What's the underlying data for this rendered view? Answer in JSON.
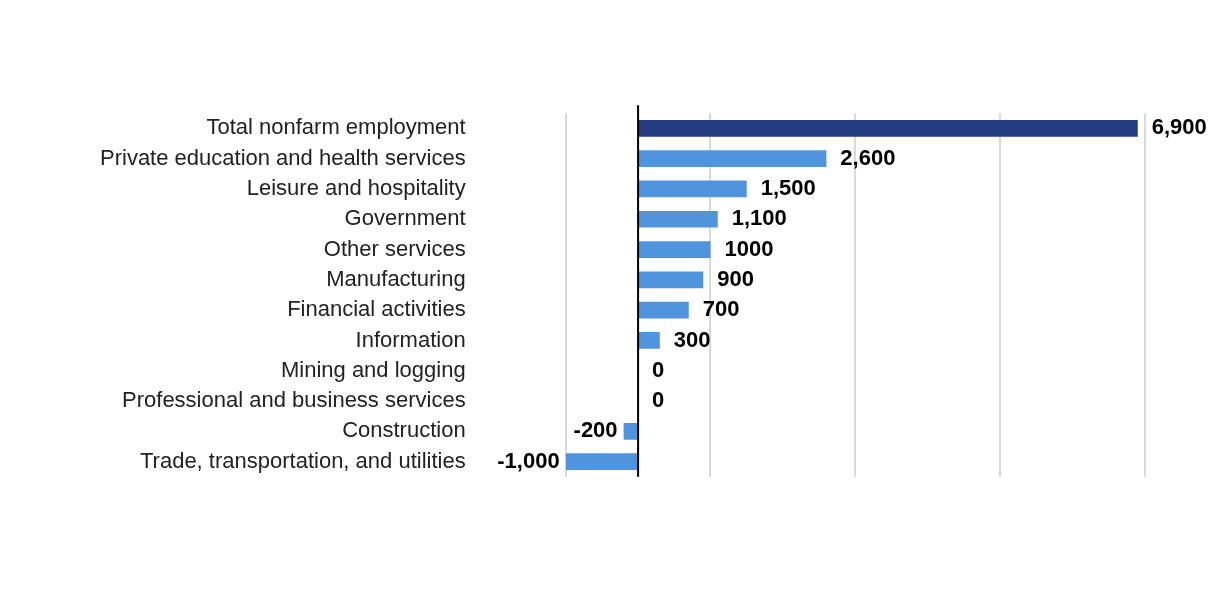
{
  "chart_data": {
    "type": "bar",
    "orientation": "horizontal",
    "categories": [
      "Total nonfarm employment",
      "Private education and health services",
      "Leisure and hospitality",
      "Government",
      "Other services",
      "Manufacturing",
      "Financial activities",
      "Information",
      "Mining and logging",
      "Professional and business services",
      "Construction",
      "Trade, transportation, and utilities"
    ],
    "values": [
      6900,
      2600,
      1500,
      1100,
      1000,
      900,
      700,
      300,
      0,
      0,
      -200,
      -1000
    ],
    "colors": [
      "#253c82",
      "#4f94dc",
      "#4f94dc",
      "#4f94dc",
      "#4f94dc",
      "#4f94dc",
      "#4f94dc",
      "#4f94dc",
      "#4f94dc",
      "#4f94dc",
      "#4f94dc",
      "#4f94dc"
    ],
    "value_labels": [
      "6,900",
      "2,600",
      "1,500",
      "1,100",
      "1000",
      "900",
      "700",
      "300",
      "0",
      "0",
      "-200",
      "-1,000"
    ],
    "xlim": [
      -1000,
      7000
    ],
    "xticks": [
      {
        "value": -1000,
        "label": null
      },
      {
        "value": 1000,
        "label": null
      },
      {
        "value": 3000,
        "label": null
      },
      {
        "value": 5000,
        "label": null
      },
      {
        "value": 7000,
        "label": null
      }
    ],
    "ref_lines": [
      {
        "axis": "x",
        "value": 0,
        "color": "#000000"
      }
    ],
    "grid": "x",
    "tick_labels": "y"
  }
}
